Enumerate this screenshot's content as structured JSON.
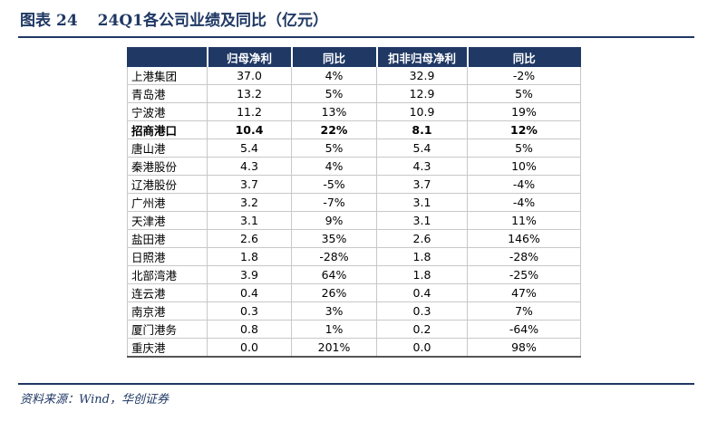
{
  "figure": {
    "label": "图表",
    "number": "24",
    "title": "24Q1各公司业绩及同比（亿元）",
    "source": "资料来源：Wind，华创证券"
  },
  "table": {
    "headers": [
      "",
      "归母净利",
      "同比",
      "扣非归母净利",
      "同比"
    ],
    "rows": [
      {
        "name": "上港集团",
        "net_profit": "37.0",
        "yoy": "4%",
        "deducted_profit": "32.9",
        "deducted_yoy": "-2%",
        "bold": false
      },
      {
        "name": "青岛港",
        "net_profit": "13.2",
        "yoy": "5%",
        "deducted_profit": "12.9",
        "deducted_yoy": "5%",
        "bold": false
      },
      {
        "name": "宁波港",
        "net_profit": "11.2",
        "yoy": "13%",
        "deducted_profit": "10.9",
        "deducted_yoy": "19%",
        "bold": false
      },
      {
        "name": "招商港口",
        "net_profit": "10.4",
        "yoy": "22%",
        "deducted_profit": "8.1",
        "deducted_yoy": "12%",
        "bold": true
      },
      {
        "name": "唐山港",
        "net_profit": "5.4",
        "yoy": "5%",
        "deducted_profit": "5.4",
        "deducted_yoy": "5%",
        "bold": false
      },
      {
        "name": "秦港股份",
        "net_profit": "4.3",
        "yoy": "4%",
        "deducted_profit": "4.3",
        "deducted_yoy": "10%",
        "bold": false
      },
      {
        "name": "辽港股份",
        "net_profit": "3.7",
        "yoy": "-5%",
        "deducted_profit": "3.7",
        "deducted_yoy": "-4%",
        "bold": false
      },
      {
        "name": "广州港",
        "net_profit": "3.2",
        "yoy": "-7%",
        "deducted_profit": "3.1",
        "deducted_yoy": "-4%",
        "bold": false
      },
      {
        "name": "天津港",
        "net_profit": "3.1",
        "yoy": "9%",
        "deducted_profit": "3.1",
        "deducted_yoy": "11%",
        "bold": false
      },
      {
        "name": "盐田港",
        "net_profit": "2.6",
        "yoy": "35%",
        "deducted_profit": "2.6",
        "deducted_yoy": "146%",
        "bold": false
      },
      {
        "name": "日照港",
        "net_profit": "1.8",
        "yoy": "-28%",
        "deducted_profit": "1.8",
        "deducted_yoy": "-28%",
        "bold": false
      },
      {
        "name": "北部湾港",
        "net_profit": "3.9",
        "yoy": "64%",
        "deducted_profit": "1.8",
        "deducted_yoy": "-25%",
        "bold": false
      },
      {
        "name": "连云港",
        "net_profit": "0.4",
        "yoy": "26%",
        "deducted_profit": "0.4",
        "deducted_yoy": "47%",
        "bold": false
      },
      {
        "name": "南京港",
        "net_profit": "0.3",
        "yoy": "3%",
        "deducted_profit": "0.3",
        "deducted_yoy": "7%",
        "bold": false
      },
      {
        "name": "厦门港务",
        "net_profit": "0.8",
        "yoy": "1%",
        "deducted_profit": "0.2",
        "deducted_yoy": "-64%",
        "bold": false
      },
      {
        "name": "重庆港",
        "net_profit": "0.0",
        "yoy": "201%",
        "deducted_profit": "0.0",
        "deducted_yoy": "98%",
        "bold": false
      }
    ]
  },
  "colors": {
    "header_bg": "#1f3864",
    "header_text": "#ffffff",
    "title_text": "#1f3864",
    "grid": "#c8c8c8"
  }
}
